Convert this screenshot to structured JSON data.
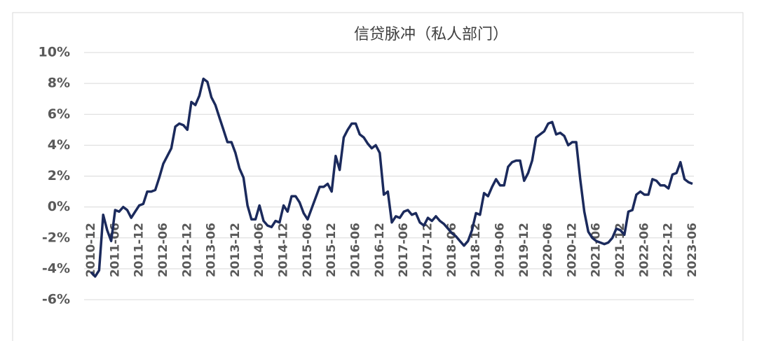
{
  "chart_data": {
    "type": "line",
    "title": "信贷脉冲（私人部门）",
    "categories": [
      "2010-12",
      null,
      null,
      null,
      null,
      null,
      "2011-06",
      null,
      null,
      null,
      null,
      null,
      "2011-12",
      null,
      null,
      null,
      null,
      null,
      "2012-06",
      null,
      null,
      null,
      null,
      null,
      "2012-12",
      null,
      null,
      null,
      null,
      null,
      "2013-06",
      null,
      null,
      null,
      null,
      null,
      "2013-12",
      null,
      null,
      null,
      null,
      null,
      "2014-06",
      null,
      null,
      null,
      null,
      null,
      "2014-12",
      null,
      null,
      null,
      null,
      null,
      "2015-06",
      null,
      null,
      null,
      null,
      null,
      "2015-12",
      null,
      null,
      null,
      null,
      null,
      "2016-06",
      null,
      null,
      null,
      null,
      null,
      "2016-12",
      null,
      null,
      null,
      null,
      null,
      "2017-06",
      null,
      null,
      null,
      null,
      null,
      "2017-12",
      null,
      null,
      null,
      null,
      null,
      "2018-06",
      null,
      null,
      null,
      null,
      null,
      "2018-12",
      null,
      null,
      null,
      null,
      null,
      "2019-06",
      null,
      null,
      null,
      null,
      null,
      "2019-12",
      null,
      null,
      null,
      null,
      null,
      "2020-06",
      null,
      null,
      null,
      null,
      null,
      "2020-12",
      null,
      null,
      null,
      null,
      null,
      "2021-06",
      null,
      null,
      null,
      null,
      null,
      "2021-12",
      null,
      null,
      null,
      null,
      null,
      "2022-06",
      null,
      null,
      null,
      null,
      null,
      "2022-12",
      null,
      null,
      null,
      null,
      null,
      "2023-06"
    ],
    "series": [
      {
        "color": "#1b2a5c",
        "values": [
          -4.2,
          -4.5,
          -4.1,
          -0.5,
          -1.5,
          -2.2,
          -0.2,
          -0.3,
          0.0,
          -0.2,
          -0.7,
          -0.3,
          0.1,
          0.2,
          1.0,
          1.0,
          1.1,
          1.9,
          2.8,
          3.3,
          3.8,
          5.2,
          5.4,
          5.3,
          5.0,
          6.8,
          6.6,
          7.2,
          8.3,
          8.1,
          7.1,
          6.6,
          5.8,
          5.0,
          4.2,
          4.2,
          3.5,
          2.5,
          1.9,
          0.1,
          -0.8,
          -0.8,
          0.1,
          -0.9,
          -1.2,
          -1.3,
          -0.9,
          -1.0,
          0.1,
          -0.3,
          0.7,
          0.7,
          0.3,
          -0.4,
          -0.8,
          -0.1,
          0.6,
          1.3,
          1.3,
          1.5,
          1.0,
          3.3,
          2.4,
          4.5,
          5.0,
          5.4,
          5.4,
          4.7,
          4.5,
          4.1,
          3.8,
          4.0,
          3.5,
          0.8,
          1.0,
          -1.0,
          -0.6,
          -0.7,
          -0.3,
          -0.2,
          -0.5,
          -0.4,
          -1.0,
          -1.2,
          -0.7,
          -0.9,
          -0.6,
          -0.9,
          -1.1,
          -1.4,
          -1.7,
          -1.9,
          -2.2,
          -2.5,
          -2.2,
          -1.5,
          -0.4,
          -0.5,
          0.9,
          0.7,
          1.3,
          1.8,
          1.4,
          1.4,
          2.6,
          2.9,
          3.0,
          3.0,
          1.7,
          2.2,
          3.0,
          4.5,
          4.7,
          4.9,
          5.4,
          5.5,
          4.7,
          4.8,
          4.6,
          4.0,
          4.2,
          4.2,
          1.8,
          -0.3,
          -1.6,
          -2.0,
          -2.2,
          -2.3,
          -2.4,
          -2.3,
          -2.0,
          -1.4,
          -1.5,
          -1.8,
          -0.3,
          -0.2,
          0.8,
          1.0,
          0.8,
          0.8,
          1.8,
          1.7,
          1.4,
          1.4,
          1.2,
          2.1,
          2.2,
          2.9,
          1.8,
          1.6,
          1.5
        ]
      }
    ],
    "ylim": [
      -6,
      10
    ],
    "yticks": [
      {
        "value": -6,
        "label": "-6%"
      },
      {
        "value": -4,
        "label": "-4%"
      },
      {
        "value": -2,
        "label": "-2%"
      },
      {
        "value": 0,
        "label": "0%"
      },
      {
        "value": 2,
        "label": "2%"
      },
      {
        "value": 4,
        "label": "4%"
      },
      {
        "value": 6,
        "label": "6%"
      },
      {
        "value": 8,
        "label": "8%"
      },
      {
        "value": 10,
        "label": "10%"
      }
    ],
    "grid": true
  }
}
